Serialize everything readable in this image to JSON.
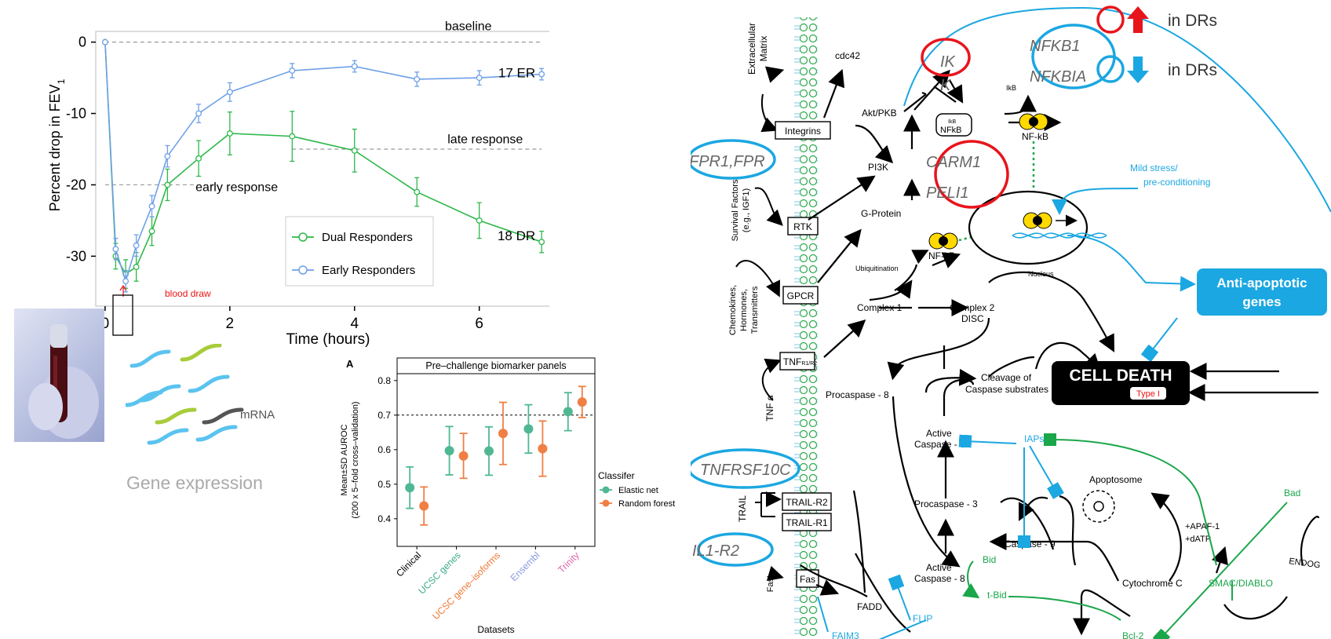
{
  "chart_data": [
    {
      "type": "line",
      "xlabel": "Time (hours)",
      "ylabel": "Percent drop in FEV",
      "ylabel_sub": "1",
      "xlim": [
        -0.15,
        7.3
      ],
      "ylim": [
        -37,
        1.5
      ],
      "x_ticks": [
        "0",
        "2",
        "4",
        "6"
      ],
      "y_ticks": [
        "0",
        "-10",
        "-20",
        "-30"
      ],
      "grid": false,
      "legend_position": "bottom-center",
      "series": [
        {
          "name": "Dual Responders",
          "color": "#2db84a",
          "end_label": "18 DR",
          "x": [
            0,
            0.17,
            0.33,
            0.5,
            0.75,
            1,
            1.5,
            2,
            3,
            4,
            5,
            6,
            7
          ],
          "y": [
            0,
            -30,
            -32.5,
            -31.5,
            -26.5,
            -20,
            -16.3,
            -12.8,
            -13.2,
            -15.2,
            -21,
            -25,
            -28
          ],
          "err": [
            0,
            1.8,
            2,
            2,
            2,
            2.2,
            2.5,
            3,
            3.5,
            3,
            2,
            2.5,
            1.5
          ]
        },
        {
          "name": "Early Responders",
          "color": "#6fa0e8",
          "end_label": "17 ER",
          "x": [
            0,
            0.17,
            0.33,
            0.5,
            0.75,
            1,
            1.5,
            2,
            3,
            4,
            5,
            6,
            7
          ],
          "y": [
            0,
            -29,
            -33.5,
            -28.5,
            -23,
            -16,
            -10,
            -7,
            -4,
            -3.4,
            -5.2,
            -5,
            -4.5
          ],
          "err": [
            0,
            1.5,
            1.5,
            1.5,
            1.5,
            1.5,
            1.3,
            1.3,
            1,
            0.8,
            1,
            1,
            0.8
          ]
        }
      ],
      "reference_lines": [
        {
          "label": "baseline",
          "y": 0,
          "x_from": 0,
          "x_to": 7
        },
        {
          "label": "late response",
          "y": -15,
          "x_from": 3,
          "x_to": 7
        },
        {
          "label": "early response",
          "y": -20,
          "x_from": 0,
          "x_to": 1.8
        }
      ],
      "marker": {
        "label": "blood draw",
        "x": 0
      }
    },
    {
      "type": "scatter",
      "panel_letter": "A",
      "title": "Pre–challenge biomarker panels",
      "xlabel": "Datasets",
      "ylabel": "Mean±SD AUROC",
      "ylabel2": "(200 x 5–fold cross–validation)",
      "ylim": [
        0.32,
        0.82
      ],
      "y_ticks": [
        "0.8",
        "0.7",
        "0.6",
        "0.5",
        "0.4"
      ],
      "reference_y": 0.7,
      "categories": [
        "Clinical",
        "UCSC genes",
        "UCSC gene–isoforms",
        "Ensembl",
        "Trinity"
      ],
      "category_colors": [
        "#000000",
        "#3aaa8a",
        "#ee7733",
        "#8899dd",
        "#dd66aa"
      ],
      "legend_title": "Classifer",
      "legend_position": "right",
      "series": [
        {
          "name": "Elastic net",
          "color": "#4fb893",
          "values": [
            0.49,
            0.597,
            0.596,
            0.66,
            0.71
          ],
          "sd": [
            0.06,
            0.07,
            0.07,
            0.07,
            0.055
          ]
        },
        {
          "name": "Random forest",
          "color": "#f07f45",
          "values": [
            0.437,
            0.582,
            0.647,
            0.603,
            0.738
          ],
          "sd": [
            0.055,
            0.065,
            0.09,
            0.08,
            0.045
          ]
        }
      ]
    }
  ],
  "gene_expression": {
    "title": "Gene expression",
    "mrna_label": "mRNA"
  },
  "pathway": {
    "legend": {
      "up": "in DRs",
      "down": "in DRs",
      "up_color": "#e8141c",
      "down_color": "#1ba7e1"
    },
    "receptors": [
      "Integrins",
      "RTK",
      "GPCR",
      "TNFR1/R2",
      "TRAIL-R2",
      "TRAIL-R1",
      "Fas"
    ],
    "receptor_main": "TNF",
    "receptor_sub": "R1/R2",
    "ligands": [
      "Extracellular Matrix",
      "Survival Factors (e.g., IGF1)",
      "Chemokines, Hormones, Transmitters",
      "TNF α",
      "TRAIL",
      "FasL"
    ],
    "nodes": {
      "cdc42": "cdc42",
      "akt": "Akt/PKB",
      "pi3k": "PI3K",
      "gprotein": "G-Protein",
      "ikk_text": "IKK",
      "ikb": "IkB",
      "ikb_small": "IkB",
      "nfkb_box": "NFkB",
      "nfkb": "NF-kB",
      "ubiquitination": "Ubiquitination",
      "complex1": "Complex 1",
      "complex2": "Complex 2 DISC",
      "nucleus": "Nucleus",
      "procaspase8": "Procaspase - 8",
      "cleavage": "Cleavage of Caspase substrates",
      "active_caspase3": "Active Caspase - 3",
      "iaps": "IAPs",
      "apoptosome": "Apoptosome",
      "procaspase3": "Procaspase - 3",
      "caspase9": "Caspase - 9",
      "apaf": "+APAF-1 +dATP",
      "active_caspase8": "Active Caspase - 8",
      "bid": "Bid",
      "tbid": "t-Bid",
      "cytochrome": "Cytochrome C",
      "fadd": "FADD",
      "flip": "FLIP",
      "faim3": "FAIM3",
      "bad": "Bad",
      "smac": "SMAC/DIABLO",
      "endog": "ENDOG",
      "bcl2": "Bcl-2",
      "mild_stress": "Mild stress/ pre-conditioning",
      "anti_apoptotic": "Anti-apoptotic genes",
      "cell_death": "CELL DEATH",
      "type1": "Type I"
    },
    "highlighted_up": [
      "IKK",
      "CARM1",
      "PELI1"
    ],
    "highlighted_down": [
      "FPR1,FPR",
      "NFKB1",
      "NFKBIA",
      "TNFRSF10C",
      "IL1-R2"
    ]
  }
}
